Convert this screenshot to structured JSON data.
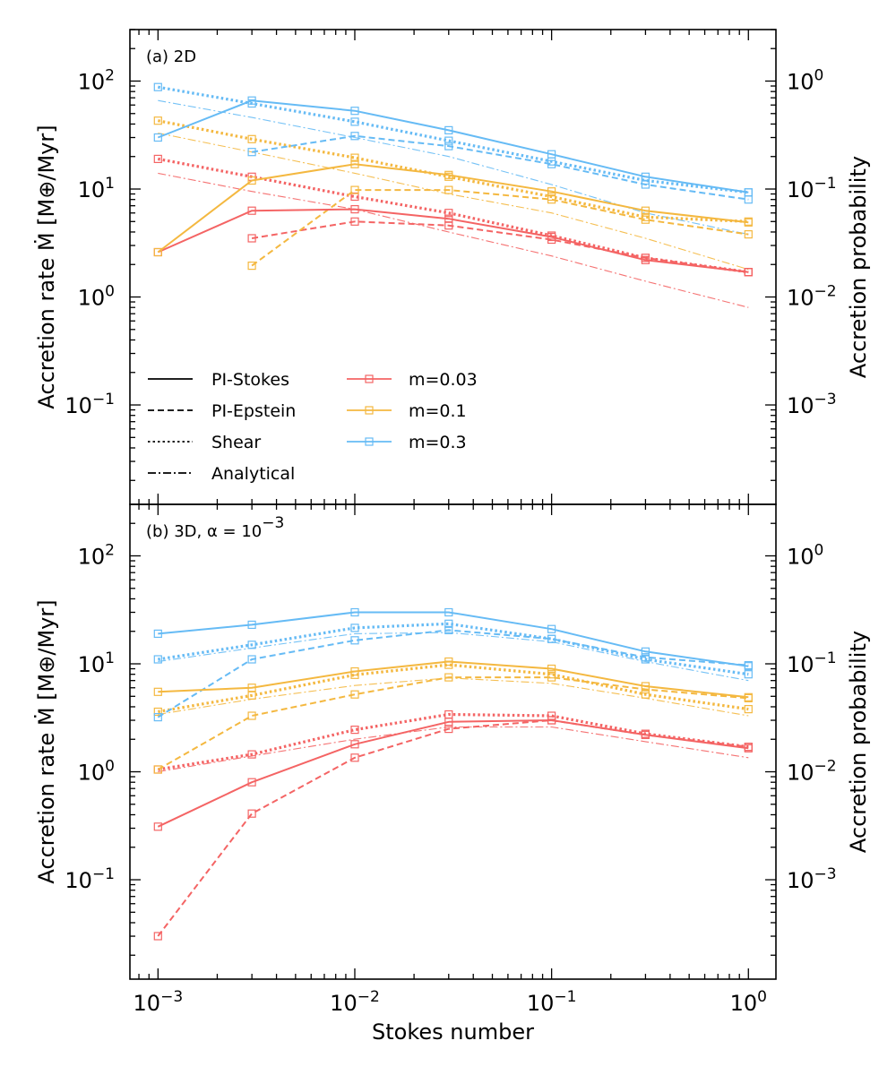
{
  "chart_data": [
    {
      "type": "line",
      "panel_label": "(a) 2D",
      "xlabel": "Stokes number",
      "ylabel": "Accretion rate Ṁ [M⊕/Myr]",
      "ylabel_right": "Accretion probability",
      "xscale": "log",
      "yscale": "log",
      "xlim": [
        0.00072,
        1.38
      ],
      "ylim": [
        0.012,
        300
      ],
      "yticks": [
        "10^2",
        "10^1",
        "10^0",
        "10^-1"
      ],
      "yticks_right": [
        "10^0",
        "10^-1",
        "10^-2",
        "10^-3"
      ],
      "x": [
        0.001,
        0.003,
        0.01,
        0.03,
        0.1,
        0.3,
        1.0
      ],
      "series": [
        {
          "name": "m=0.03 PI-Stokes",
          "mass": "m=0.03",
          "method": "PI-Stokes",
          "values": [
            2.6,
            6.3,
            6.5,
            5.3,
            3.6,
            2.2,
            1.7
          ]
        },
        {
          "name": "m=0.03 PI-Epstein",
          "mass": "m=0.03",
          "method": "PI-Epstein",
          "values": [
            null,
            3.5,
            5.0,
            4.6,
            3.4,
            2.3,
            1.7
          ]
        },
        {
          "name": "m=0.03 Shear",
          "mass": "m=0.03",
          "method": "Shear",
          "values": [
            19,
            13,
            8.5,
            6.0,
            3.7,
            2.3,
            1.7
          ]
        },
        {
          "name": "m=0.03 Analytical",
          "mass": "m=0.03",
          "method": "Analytical",
          "values": [
            14,
            9.5,
            6.5,
            4.0,
            2.4,
            1.4,
            0.8
          ]
        },
        {
          "name": "m=0.1 PI-Stokes",
          "mass": "m=0.1",
          "method": "PI-Stokes",
          "values": [
            2.6,
            12,
            17,
            13.5,
            9.5,
            6.3,
            4.9
          ]
        },
        {
          "name": "m=0.1 PI-Epstein",
          "mass": "m=0.1",
          "method": "PI-Epstein",
          "values": [
            null,
            1.95,
            9.8,
            9.8,
            8.0,
            5.2,
            3.8
          ]
        },
        {
          "name": "m=0.1 Shear",
          "mass": "m=0.1",
          "method": "Shear",
          "values": [
            43,
            29,
            19.5,
            13,
            8.5,
            5.5,
            5.0
          ]
        },
        {
          "name": "m=0.1 Analytical",
          "mass": "m=0.1",
          "method": "Analytical",
          "values": [
            33,
            22,
            14,
            9.0,
            6.0,
            3.5,
            1.8
          ]
        },
        {
          "name": "m=0.3 PI-Stokes",
          "mass": "m=0.3",
          "method": "PI-Stokes",
          "values": [
            30,
            66,
            53,
            35,
            21,
            13,
            9.3
          ]
        },
        {
          "name": "m=0.3 PI-Epstein",
          "mass": "m=0.3",
          "method": "PI-Epstein",
          "values": [
            null,
            22,
            31,
            25,
            17,
            11,
            8.0
          ]
        },
        {
          "name": "m=0.3 Shear",
          "mass": "m=0.3",
          "method": "Shear",
          "values": [
            88,
            62,
            42,
            28,
            18,
            12,
            9.3
          ]
        },
        {
          "name": "m=0.3 Analytical",
          "mass": "m=0.3",
          "method": "Analytical",
          "values": [
            66,
            46,
            30,
            20,
            11,
            6.0,
            3.8
          ]
        }
      ]
    },
    {
      "type": "line",
      "panel_label": "(b) 3D, α = 10^-3",
      "xlabel": "Stokes number",
      "ylabel": "Accretion rate Ṁ [M⊕/Myr]",
      "ylabel_right": "Accretion probability",
      "xscale": "log",
      "yscale": "log",
      "xlim": [
        0.00072,
        1.38
      ],
      "ylim": [
        0.012,
        300
      ],
      "xticks": [
        "10^-3",
        "10^-2",
        "10^-1",
        "10^0"
      ],
      "yticks": [
        "10^2",
        "10^1",
        "10^0",
        "10^-1"
      ],
      "yticks_right": [
        "10^0",
        "10^-1",
        "10^-2",
        "10^-3"
      ],
      "x": [
        0.001,
        0.003,
        0.01,
        0.03,
        0.1,
        0.3,
        1.0
      ],
      "series": [
        {
          "name": "m=0.03 PI-Stokes",
          "mass": "m=0.03",
          "method": "PI-Stokes",
          "values": [
            0.31,
            0.8,
            1.8,
            2.9,
            3.0,
            2.2,
            1.65
          ]
        },
        {
          "name": "m=0.03 PI-Epstein",
          "mass": "m=0.03",
          "method": "PI-Epstein",
          "values": [
            0.03,
            0.41,
            1.35,
            2.5,
            3.0,
            2.2,
            1.7
          ]
        },
        {
          "name": "m=0.03 Shear",
          "mass": "m=0.03",
          "method": "Shear",
          "values": [
            1.05,
            1.45,
            2.45,
            3.4,
            3.3,
            2.25,
            1.7
          ]
        },
        {
          "name": "m=0.03 Analytical",
          "mass": "m=0.03",
          "method": "Analytical",
          "values": [
            1.0,
            1.4,
            2.0,
            2.6,
            2.6,
            1.9,
            1.35
          ]
        },
        {
          "name": "m=0.1 PI-Stokes",
          "mass": "m=0.1",
          "method": "PI-Stokes",
          "values": [
            5.5,
            6.0,
            8.5,
            10.5,
            9.0,
            6.2,
            4.9
          ]
        },
        {
          "name": "m=0.1 PI-Epstein",
          "mass": "m=0.1",
          "method": "PI-Epstein",
          "values": [
            1.05,
            3.3,
            5.2,
            7.5,
            7.5,
            5.8,
            4.8
          ]
        },
        {
          "name": "m=0.1 Shear",
          "mass": "m=0.1",
          "method": "Shear",
          "values": [
            3.6,
            5.1,
            7.9,
            9.8,
            8.0,
            5.2,
            3.8
          ]
        },
        {
          "name": "m=0.1 Analytical",
          "mass": "m=0.1",
          "method": "Analytical",
          "values": [
            3.4,
            4.7,
            6.3,
            7.4,
            6.6,
            4.8,
            3.3
          ]
        },
        {
          "name": "m=0.3 PI-Stokes",
          "mass": "m=0.3",
          "method": "PI-Stokes",
          "values": [
            19,
            23,
            30,
            30,
            21,
            13,
            9.5
          ]
        },
        {
          "name": "m=0.3 PI-Epstein",
          "mass": "m=0.3",
          "method": "PI-Epstein",
          "values": [
            3.2,
            11,
            16.5,
            20.5,
            17,
            11.5,
            9.7
          ]
        },
        {
          "name": "m=0.3 Shear",
          "mass": "m=0.3",
          "method": "Shear",
          "values": [
            11,
            15,
            21.5,
            23.5,
            17,
            11,
            8.0
          ]
        },
        {
          "name": "m=0.3 Analytical",
          "mass": "m=0.3",
          "method": "Analytical",
          "values": [
            10.5,
            14,
            19,
            19.5,
            16,
            10.5,
            7.0
          ]
        }
      ]
    }
  ],
  "legend": {
    "styles": [
      {
        "label": "PI-Stokes",
        "dash": "solid"
      },
      {
        "label": "PI-Epstein",
        "dash": "dashed"
      },
      {
        "label": "Shear",
        "dash": "dotted"
      },
      {
        "label": "Analytical",
        "dash": "dashdot"
      }
    ],
    "masses": [
      {
        "label": "m=0.03",
        "color": "#f46464"
      },
      {
        "label": "m=0.1",
        "color": "#f4b840"
      },
      {
        "label": "m=0.3",
        "color": "#66bbf5"
      }
    ]
  },
  "colors": {
    "m=0.03": "#f46464",
    "m=0.1": "#f4b840",
    "m=0.3": "#66bbf5"
  },
  "dash_patterns": {
    "PI-Stokes": "",
    "PI-Epstein": "7,4",
    "Shear": "2.5,3",
    "Analytical": "9,3,2,3"
  }
}
